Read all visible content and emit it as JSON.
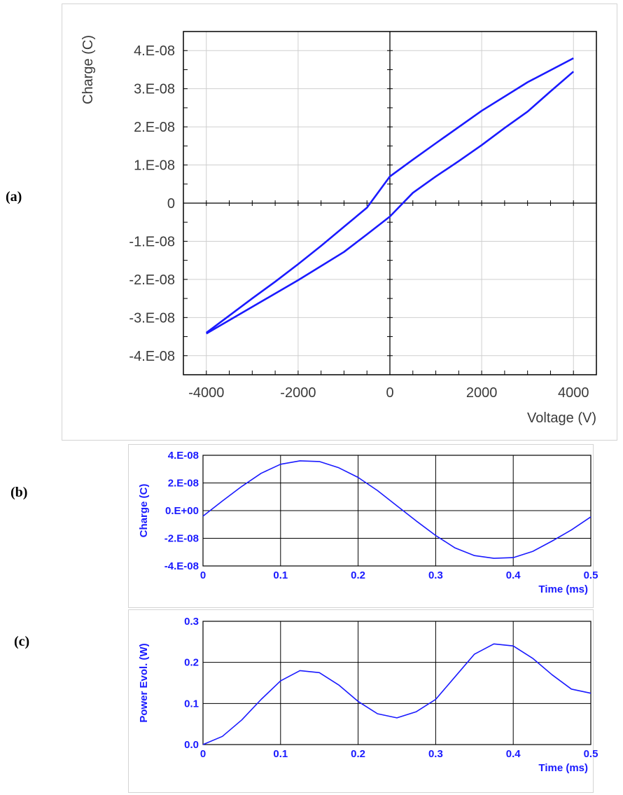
{
  "panels": {
    "a": {
      "label": "(a)"
    },
    "b": {
      "label": "(b)"
    },
    "c": {
      "label": "(c)"
    }
  },
  "colors": {
    "trace": "#1a1aff",
    "label_b": "#1a1aff",
    "grid_a": "#cfcfcf",
    "grid_bc": "#000000"
  },
  "chart_data": [
    {
      "id": "a",
      "type": "line",
      "xlabel": "Voltage (V)",
      "ylabel": "Charge (C)",
      "xlim": [
        -4500,
        4500
      ],
      "ylim": [
        -4.5e-08,
        4.5e-08
      ],
      "xticks": [
        -4000,
        -2000,
        0,
        2000,
        4000
      ],
      "xtick_labels": [
        "-4000",
        "-2000",
        "0",
        "2000",
        "4000"
      ],
      "yticks": [
        4e-08,
        3e-08,
        2e-08,
        1e-08,
        0,
        -1e-08,
        -2e-08,
        -3e-08,
        -4e-08
      ],
      "ytick_labels": [
        "4.E-08",
        "3.E-08",
        "2.E-08",
        "1.E-08",
        "0",
        "-1.E-08",
        "-2.E-08",
        "-3.E-08",
        "-4.E-08"
      ],
      "grid": true,
      "series": [
        {
          "x": [
            -4000,
            -3500,
            -3000,
            -2500,
            -2000,
            -1500,
            -1000,
            -500,
            0,
            500,
            1000,
            2000,
            3000,
            4000
          ],
          "y": [
            -3.4e-08,
            -2.95e-08,
            -2.5e-08,
            -2.06e-08,
            -1.6e-08,
            -1.12e-08,
            -6.2e-09,
            -1.2e-09,
            7e-09,
            1.14e-08,
            1.57e-08,
            2.42e-08,
            3.17e-08,
            3.8e-08
          ]
        },
        {
          "x": [
            4000,
            3500,
            3000,
            2500,
            2000,
            1500,
            1000,
            500,
            0,
            -500,
            -1000,
            -2000,
            -3000,
            -4000
          ],
          "y": [
            3.45e-08,
            2.93e-08,
            2.4e-08,
            1.97e-08,
            1.52e-08,
            1.1e-08,
            7e-09,
            2.7e-09,
            -3.5e-09,
            -8.2e-09,
            -1.28e-08,
            -2.02e-08,
            -2.72e-08,
            -3.42e-08
          ]
        }
      ]
    },
    {
      "id": "b",
      "type": "line",
      "xlabel": "Time (ms)",
      "ylabel": "Charge (C)",
      "xlim": [
        0,
        0.5
      ],
      "ylim": [
        -4e-08,
        4e-08
      ],
      "xticks": [
        0,
        0.1,
        0.2,
        0.3,
        0.4,
        0.5
      ],
      "xtick_labels": [
        "0",
        "0.1",
        "0.2",
        "0.3",
        "0.4",
        "0.5"
      ],
      "yticks": [
        4e-08,
        2e-08,
        0,
        -2e-08,
        -4e-08
      ],
      "ytick_labels": [
        "4.E-08",
        "2.E-08",
        "0.E+00",
        "-2.E-08",
        "-4.E-08"
      ],
      "grid": true,
      "series": [
        {
          "x": [
            0,
            0.025,
            0.05,
            0.075,
            0.1,
            0.125,
            0.15,
            0.175,
            0.2,
            0.225,
            0.25,
            0.275,
            0.3,
            0.325,
            0.35,
            0.375,
            0.4,
            0.425,
            0.45,
            0.475,
            0.5
          ],
          "y": [
            -4e-09,
            7e-09,
            1.75e-08,
            2.7e-08,
            3.35e-08,
            3.6e-08,
            3.55e-08,
            3.1e-08,
            2.4e-08,
            1.45e-08,
            3.5e-09,
            -7.5e-09,
            -1.8e-08,
            -2.7e-08,
            -3.25e-08,
            -3.45e-08,
            -3.4e-08,
            -2.95e-08,
            -2.2e-08,
            -1.4e-08,
            -4.5e-09
          ]
        }
      ]
    },
    {
      "id": "c",
      "type": "line",
      "xlabel": "Time (ms)",
      "ylabel": "Power Evol. (W)",
      "xlim": [
        0,
        0.5
      ],
      "ylim": [
        0,
        0.3
      ],
      "xticks": [
        0,
        0.1,
        0.2,
        0.3,
        0.4,
        0.5
      ],
      "xtick_labels": [
        "0",
        "0.1",
        "0.2",
        "0.3",
        "0.4",
        "0.5"
      ],
      "yticks": [
        0.3,
        0.2,
        0.1,
        0
      ],
      "ytick_labels": [
        "0.3",
        "0.2",
        "0.1",
        "0.0"
      ],
      "grid": true,
      "series": [
        {
          "x": [
            0,
            0.025,
            0.05,
            0.075,
            0.1,
            0.125,
            0.15,
            0.175,
            0.2,
            0.225,
            0.25,
            0.275,
            0.3,
            0.325,
            0.35,
            0.375,
            0.4,
            0.425,
            0.45,
            0.475,
            0.5
          ],
          "y": [
            0.0,
            0.02,
            0.06,
            0.11,
            0.155,
            0.18,
            0.175,
            0.145,
            0.105,
            0.075,
            0.065,
            0.08,
            0.11,
            0.165,
            0.22,
            0.245,
            0.24,
            0.21,
            0.17,
            0.135,
            0.125
          ]
        }
      ]
    }
  ]
}
